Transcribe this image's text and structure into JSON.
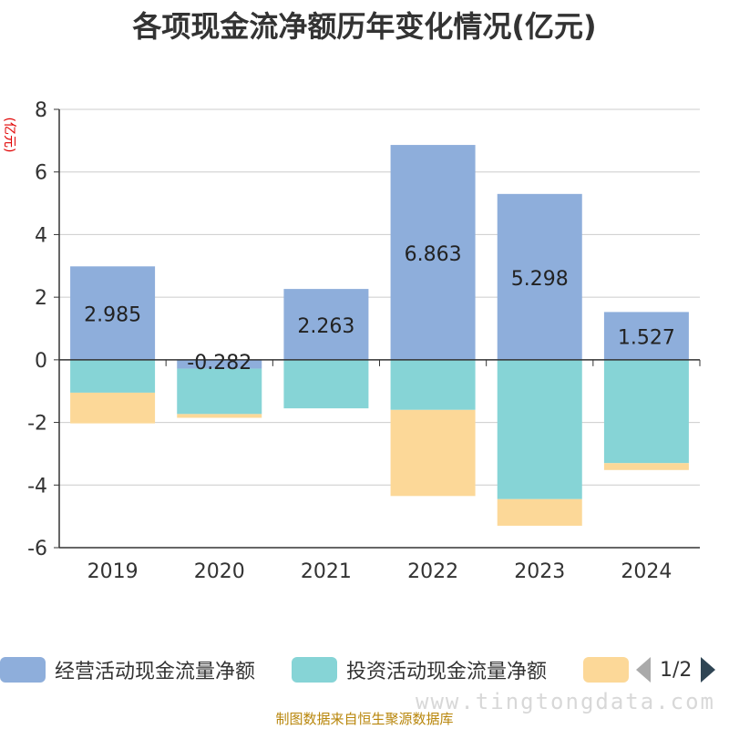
{
  "chart_data": {
    "type": "bar",
    "title": "各项现金流净额历年变化情况(亿元)",
    "ylabel": "(亿元)",
    "categories": [
      "2019",
      "2020",
      "2021",
      "2022",
      "2023",
      "2024"
    ],
    "ylim": [
      -6,
      8
    ],
    "yticks": [
      -6,
      -4,
      -2,
      0,
      2,
      4,
      6,
      8
    ],
    "grid": true,
    "legend_position": "bottom",
    "series": [
      {
        "name": "经营活动现金流量净额",
        "color": "#8eaedb",
        "values": [
          2.985,
          -0.282,
          2.263,
          6.863,
          5.298,
          1.527
        ],
        "labels": [
          "2.985",
          "-0.282",
          "2.263",
          "6.863",
          "5.298",
          "1.527"
        ]
      },
      {
        "name": "投资活动现金流量净额",
        "color": "#86d4d6",
        "values": [
          -1.05,
          -1.45,
          -1.55,
          -1.6,
          -4.45,
          -3.3
        ]
      },
      {
        "name": "",
        "color": "#fcd898",
        "values": [
          -0.98,
          -0.12,
          0.0,
          -2.75,
          -0.85,
          -0.22
        ]
      }
    ]
  },
  "legend": {
    "pager": "1/2"
  },
  "watermark": "www.tingtongdata.com",
  "source": "制图数据来自恒生聚源数据库"
}
